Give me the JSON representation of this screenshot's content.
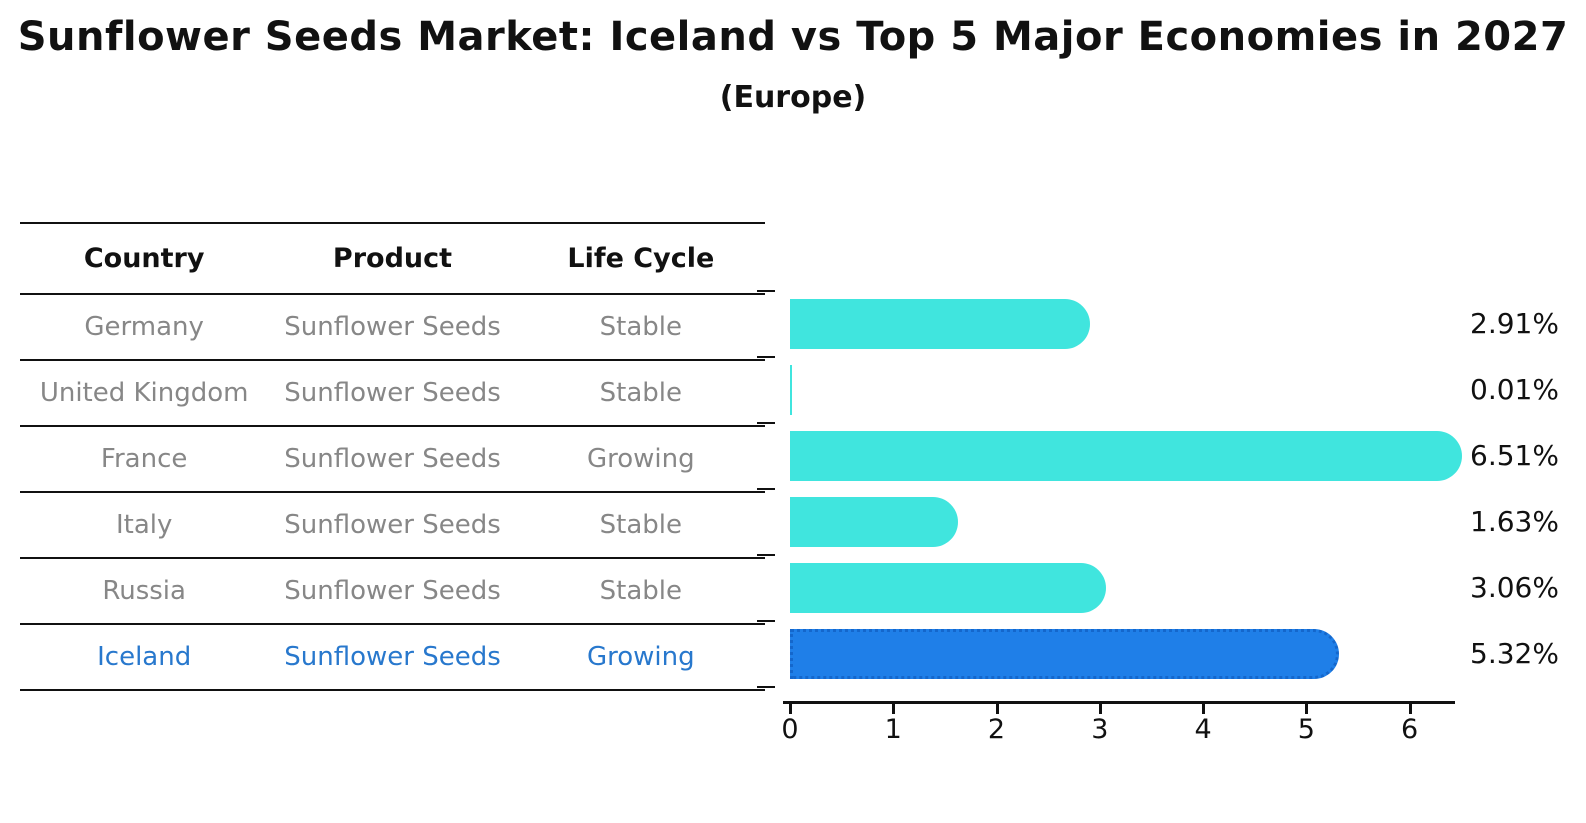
{
  "title": "Sunflower Seeds Market: Iceland vs Top 5 Major Economies in 2027",
  "subtitle": "(Europe)",
  "table": {
    "headers": [
      "Country",
      "Product",
      "Life Cycle"
    ],
    "rows": [
      {
        "country": "Germany",
        "product": "Sunflower Seeds",
        "life_cycle": "Stable",
        "highlight": false
      },
      {
        "country": "United Kingdom",
        "product": "Sunflower Seeds",
        "life_cycle": "Stable",
        "highlight": false
      },
      {
        "country": "France",
        "product": "Sunflower Seeds",
        "life_cycle": "Growing",
        "highlight": false
      },
      {
        "country": "Italy",
        "product": "Sunflower Seeds",
        "life_cycle": "Stable",
        "highlight": false
      },
      {
        "country": "Russia",
        "product": "Sunflower Seeds",
        "life_cycle": "Stable",
        "highlight": false
      },
      {
        "country": "Iceland",
        "product": "Sunflower Seeds",
        "life_cycle": "Growing",
        "highlight": true
      }
    ]
  },
  "chart_data": {
    "type": "bar",
    "orientation": "horizontal",
    "title": "Sunflower Seeds Market: Iceland vs Top 5 Major Economies in 2027 (Europe)",
    "categories": [
      "Germany",
      "United Kingdom",
      "France",
      "Italy",
      "Russia",
      "Iceland"
    ],
    "values": [
      2.91,
      0.01,
      6.51,
      1.63,
      3.06,
      5.32
    ],
    "value_labels": [
      "2.91%",
      "0.01%",
      "6.51%",
      "1.63%",
      "3.06%",
      "5.32%"
    ],
    "unit": "%",
    "xlabel": "",
    "ylabel": "",
    "xlim": [
      0,
      6.44
    ],
    "xticks": [
      0,
      1,
      2,
      3,
      4,
      5,
      6
    ],
    "grid": false,
    "legend": "none",
    "highlight_index": 5
  },
  "colors": {
    "bar_default": "#40e5de",
    "bar_highlight": "#1f7fe8",
    "bar_highlight_border": "#1467cc",
    "highlight_text": "#2878cd",
    "table_text": "#878787",
    "axis_text": "#111111"
  }
}
